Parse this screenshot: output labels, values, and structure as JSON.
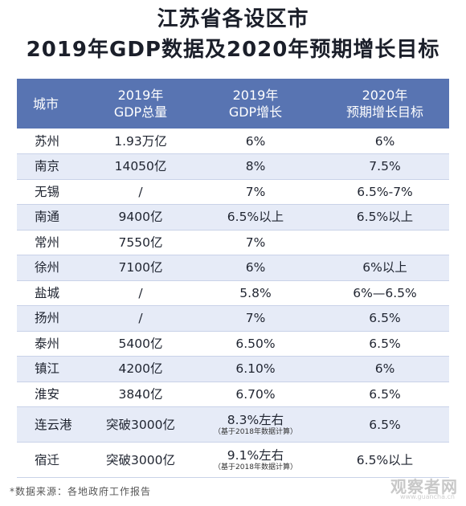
{
  "title": {
    "line1": "江苏省各设区市",
    "line2": "2019年GDP数据及2020年预期增长目标"
  },
  "table": {
    "headers": {
      "city": "城市",
      "gdp_line1": "2019年",
      "gdp_line2": "GDP总量",
      "growth_line1": "2019年",
      "growth_line2": "GDP增长",
      "target_line1": "2020年",
      "target_line2": "预期增长目标"
    },
    "rows": [
      {
        "city": "苏州",
        "gdp": "1.93万亿",
        "growth": "6%",
        "growth_note": "",
        "target": "6%"
      },
      {
        "city": "南京",
        "gdp": "14050亿",
        "growth": "8%",
        "growth_note": "",
        "target": "7.5%"
      },
      {
        "city": "无锡",
        "gdp": "/",
        "growth": "7%",
        "growth_note": "",
        "target": "6.5%-7%"
      },
      {
        "city": "南通",
        "gdp": "9400亿",
        "growth": "6.5%以上",
        "growth_note": "",
        "target": "6.5%以上"
      },
      {
        "city": "常州",
        "gdp": "7550亿",
        "growth": "7%",
        "growth_note": "",
        "target": ""
      },
      {
        "city": "徐州",
        "gdp": "7100亿",
        "growth": "6%",
        "growth_note": "",
        "target": "6%以上"
      },
      {
        "city": "盐城",
        "gdp": "/",
        "growth": "5.8%",
        "growth_note": "",
        "target": "6%—6.5%"
      },
      {
        "city": "扬州",
        "gdp": "/",
        "growth": "7%",
        "growth_note": "",
        "target": "6.5%"
      },
      {
        "city": "泰州",
        "gdp": "5400亿",
        "growth": "6.50%",
        "growth_note": "",
        "target": "6.5%"
      },
      {
        "city": "镇江",
        "gdp": "4200亿",
        "growth": "6.10%",
        "growth_note": "",
        "target": "6%"
      },
      {
        "city": "淮安",
        "gdp": "3840亿",
        "growth": "6.70%",
        "growth_note": "",
        "target": "6.5%"
      },
      {
        "city": "连云港",
        "gdp": "突破3000亿",
        "growth": "8.3%左右",
        "growth_note": "（基于2018年数据计算）",
        "target": "6.5%"
      },
      {
        "city": "宿迁",
        "gdp": "突破3000亿",
        "growth": "9.1%左右",
        "growth_note": "（基于2018年数据计算）",
        "target": "6.5%以上"
      }
    ]
  },
  "footer": {
    "source": "*数据来源：各地政府工作报告"
  },
  "watermark": {
    "text": "观察者网",
    "sub": "www.guancha.cn"
  },
  "colors": {
    "header_bg": "#5874b2",
    "stripe": "#e6ebf7"
  }
}
